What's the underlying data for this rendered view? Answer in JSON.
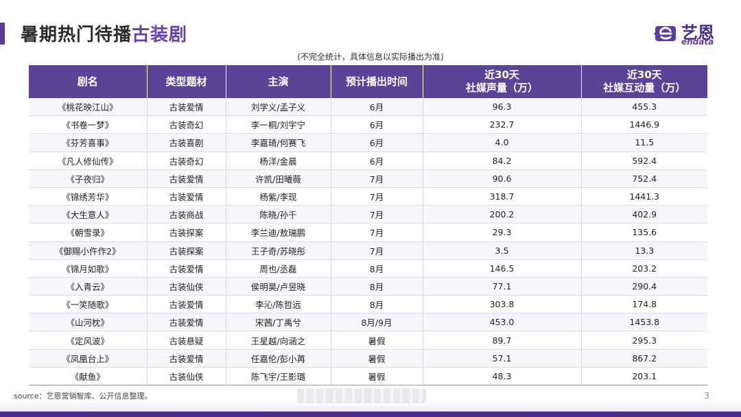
{
  "header": {
    "title_prefix": "暑期热门待播",
    "title_accent": "古装剧",
    "note": "(不完全统计，具体信息以实际播出为准)"
  },
  "logo": {
    "name_cn": "艺恩",
    "name_en": "endata",
    "accent_color": "#6a3fb0"
  },
  "table": {
    "headers": [
      {
        "line1": "剧名",
        "line2": ""
      },
      {
        "line1": "类型题材",
        "line2": ""
      },
      {
        "line1": "主演",
        "line2": ""
      },
      {
        "line1": "预计播出时间",
        "line2": ""
      },
      {
        "line1": "近30天",
        "line2": "社媒声量（万）"
      },
      {
        "line1": "近30天",
        "line2": "社媒互动量（万）"
      }
    ],
    "rows": [
      [
        "《桃花映江山》",
        "古装爱情",
        "刘学义/孟子义",
        "6月",
        "96.3",
        "455.3"
      ],
      [
        "《书卷一梦》",
        "古装奇幻",
        "李一桐/刘宇宁",
        "6月",
        "232.7",
        "1446.9"
      ],
      [
        "《芬芳喜事》",
        "古装喜剧",
        "李嘉琦/何赛飞",
        "6月",
        "4.0",
        "11.5"
      ],
      [
        "《凡人修仙传》",
        "古装奇幻",
        "杨洋/金晨",
        "6月",
        "84.2",
        "592.4"
      ],
      [
        "《子夜归》",
        "古装爱情",
        "许凯/田曦薇",
        "7月",
        "90.6",
        "752.4"
      ],
      [
        "《锦绣芳华》",
        "古装爱情",
        "杨紫/李现",
        "7月",
        "318.7",
        "1441.3"
      ],
      [
        "《大生意人》",
        "古装商战",
        "陈晓/孙千",
        "7月",
        "200.2",
        "402.9"
      ],
      [
        "《朝雪录》",
        "古装探案",
        "李兰迪/敖瑞鹏",
        "7月",
        "29.3",
        "135.6"
      ],
      [
        "《御赐小仵作2》",
        "古装探案",
        "王子奇/苏晓彤",
        "7月",
        "3.5",
        "13.3"
      ],
      [
        "《锦月如歌》",
        "古装爱情",
        "周也/丞磊",
        "8月",
        "146.5",
        "203.2"
      ],
      [
        "《入青云》",
        "古装仙侠",
        "侯明昊/卢昱晓",
        "8月",
        "77.1",
        "290.4"
      ],
      [
        "《一笑随歌》",
        "古装爱情",
        "李沁/陈哲远",
        "8月",
        "303.8",
        "174.8"
      ],
      [
        "《山河枕》",
        "古装爱情",
        "宋茜/丁禹兮",
        "8月/9月",
        "453.0",
        "1453.8"
      ],
      [
        "《定风波》",
        "古装悬疑",
        "王星越/向涵之",
        "暑假",
        "89.7",
        "295.3"
      ],
      [
        "《凤凰台上》",
        "古装爱情",
        "任嘉伦/彭小苒",
        "暑假",
        "57.1",
        "867.2"
      ],
      [
        "《献鱼》",
        "古装仙侠",
        "陈飞宇/王影璐",
        "暑假",
        "48.3",
        "203.1"
      ]
    ]
  },
  "footer": {
    "source": "source：艺恩营销智库、公开信息整理。",
    "page_number": "3"
  },
  "colors": {
    "header_bg": "#5b4397",
    "title_accent": "#6a3fb0",
    "band": "#4a2a85"
  }
}
